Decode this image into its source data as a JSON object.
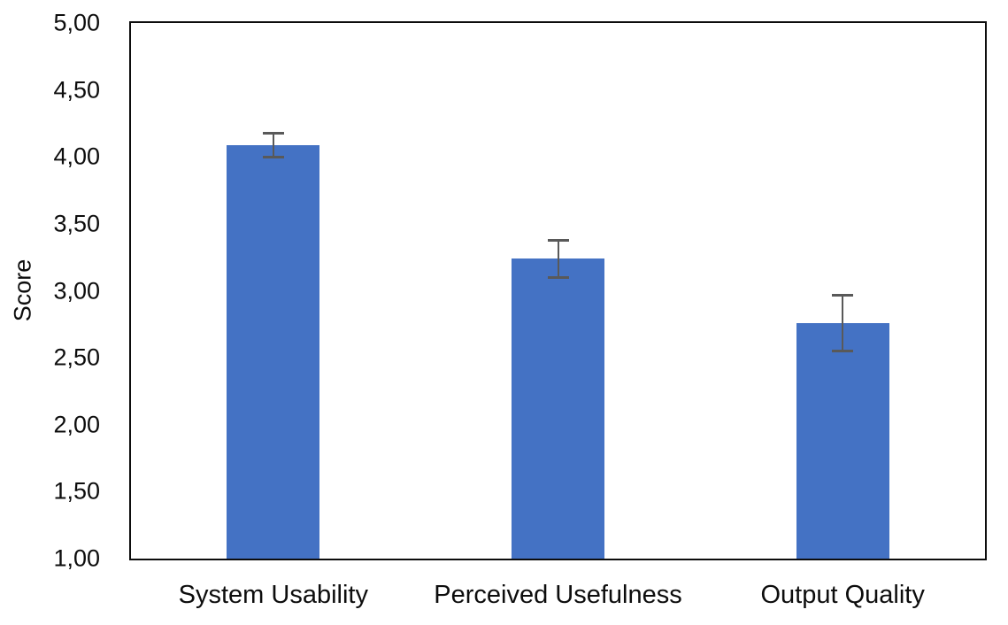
{
  "chart_data": {
    "type": "bar",
    "title": "",
    "categories": [
      "System Usability",
      "Perceived Usefulness",
      "Output Quality"
    ],
    "values": [
      4.09,
      3.24,
      2.76
    ],
    "error_bars": [
      0.09,
      0.14,
      0.21
    ],
    "xlabel": "",
    "ylabel": "Score",
    "ylim": [
      1.0,
      5.0
    ],
    "ytick_step": 0.5,
    "ytick_labels": [
      "1,00",
      "1,50",
      "2,00",
      "2,50",
      "3,00",
      "3,50",
      "4,00",
      "4,50",
      "5,00"
    ],
    "decimal_separator": ",",
    "grid": false,
    "legend": "none",
    "colors": {
      "bar": "#4472C4",
      "error_bar": "#595959",
      "axis": "#0d0d0d",
      "text": "#0d0d0d",
      "background": "#ffffff"
    }
  }
}
